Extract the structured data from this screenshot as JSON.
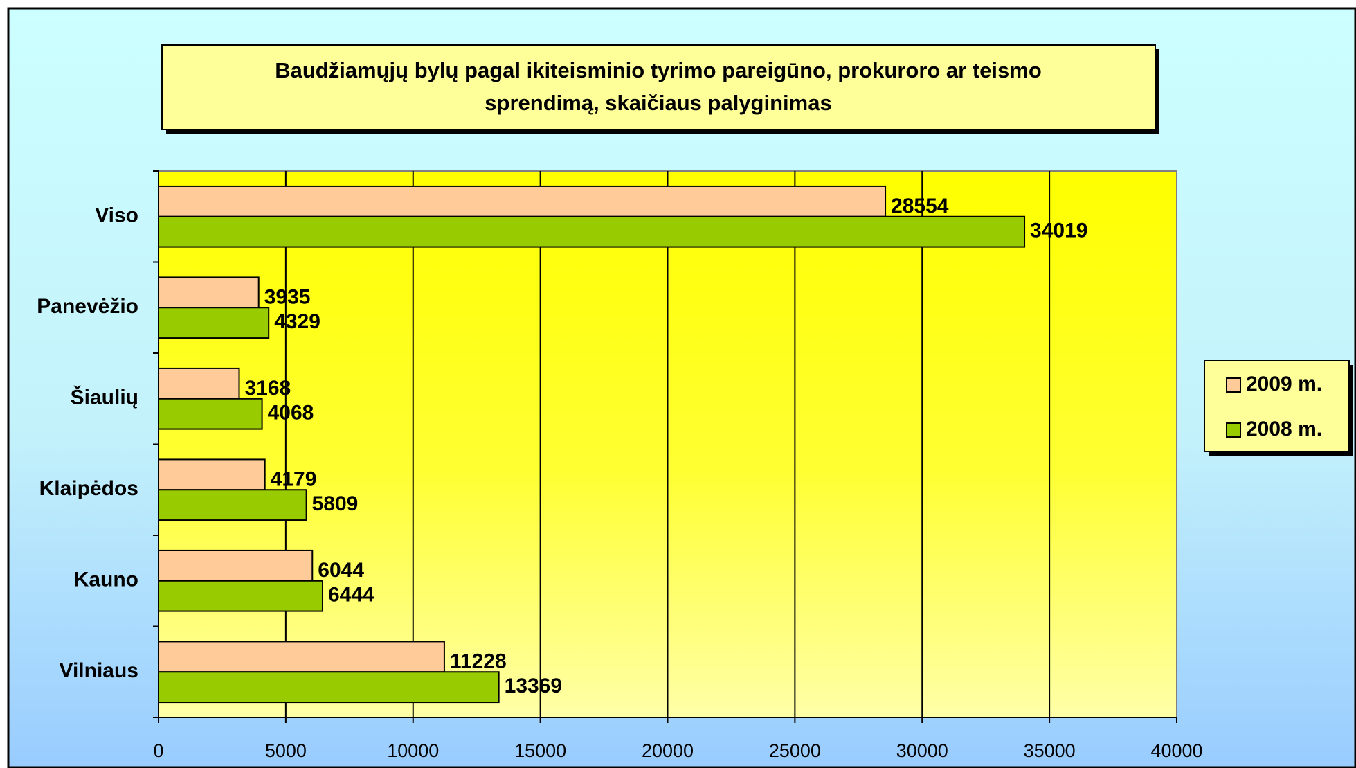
{
  "chart_data": {
    "type": "bar",
    "orientation": "horizontal",
    "title": "Baudžiamųjų bylų pagal ikiteisminio tyrimo pareigūno, prokuroro ar teismo sprendimą, skaičiaus palyginimas",
    "categories": [
      "Viso",
      "Panevėžio",
      "Šiaulių",
      "Klaipėdos",
      "Kauno",
      "Vilniaus"
    ],
    "series": [
      {
        "name": "2009 m.",
        "color": "#ffcc99",
        "values": [
          28554,
          3935,
          3168,
          4179,
          6044,
          11228
        ]
      },
      {
        "name": "2008 m.",
        "color": "#99cc00",
        "values": [
          34019,
          4329,
          4068,
          5809,
          6444,
          13369
        ]
      }
    ],
    "xlim": [
      0,
      40000
    ],
    "xticks": [
      0,
      5000,
      10000,
      15000,
      20000,
      25000,
      30000,
      35000,
      40000
    ],
    "grid": true,
    "legend": "right"
  }
}
